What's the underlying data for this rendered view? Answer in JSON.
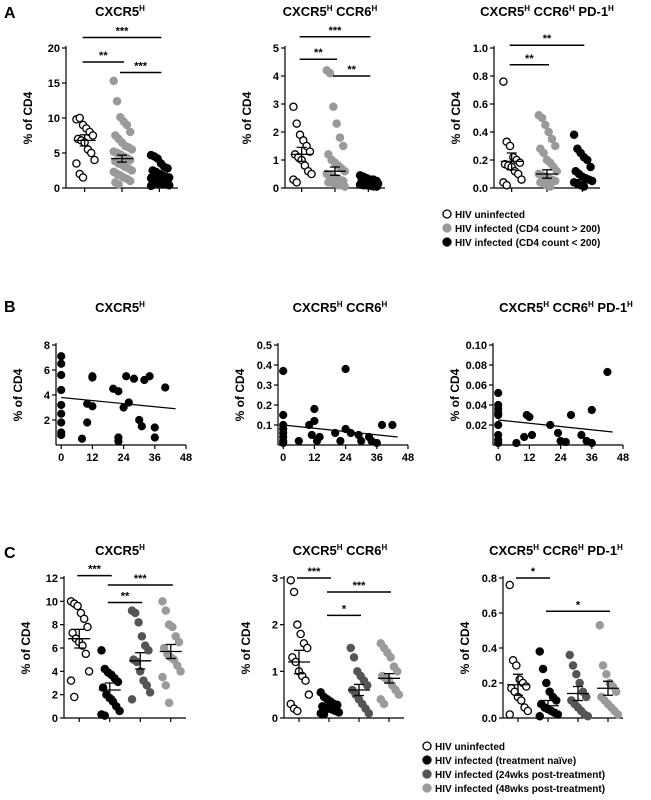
{
  "panel_labels": [
    "A",
    "B",
    "C"
  ],
  "legend_A": [
    {
      "label": "HIV uninfected",
      "color": "#ffffff"
    },
    {
      "label": "HIV infected (CD4 count > 200)",
      "color": "#9a9a9a"
    },
    {
      "label": "HIV infected (CD4 count < 200)",
      "color": "#000000"
    }
  ],
  "legend_C": [
    {
      "label": "HIV uninfected",
      "color": "#ffffff"
    },
    {
      "label": "HIV infected (treatment naïve)",
      "color": "#000000"
    },
    {
      "label": "HIV infected (24wks post-treatment)",
      "color": "#555555"
    },
    {
      "label": "HIV infected (48wks post-treatment)",
      "color": "#9a9a9a"
    }
  ],
  "chart_data": [
    {
      "id": "A1",
      "type": "scatter",
      "title_main": "CXCR5",
      "title_sup": "H",
      "title_rest": "",
      "ylabel": "% of CD4",
      "ylim": [
        0,
        20
      ],
      "yticks": [
        0,
        5,
        10,
        15,
        20
      ],
      "groups": [
        {
          "legend_index": 0,
          "mean": 6.8,
          "sem": 0.8,
          "values": [
            9.8,
            10.0,
            9.0,
            8.5,
            8.0,
            7.5,
            7.0,
            6.8,
            6.5,
            5.5,
            5.0,
            4.0,
            3.5,
            2.0,
            1.5
          ]
        },
        {
          "legend_index": 1,
          "mean": 4.2,
          "sem": 0.5,
          "values": [
            15.3,
            12.4,
            10.1,
            9.5,
            9.0,
            8.0,
            7.5,
            7.0,
            6.5,
            6.0,
            5.8,
            5.5,
            5.2,
            5.0,
            4.8,
            4.5,
            4.3,
            4.0,
            3.8,
            3.5,
            3.3,
            3.0,
            2.8,
            2.5,
            2.3,
            2.0,
            1.8,
            1.5,
            1.3,
            1.0,
            0.8,
            0.5
          ]
        },
        {
          "legend_index": 2,
          "mean": 1.9,
          "sem": 0.3,
          "values": [
            4.7,
            4.5,
            4.2,
            3.5,
            3.0,
            2.8,
            2.5,
            2.3,
            2.0,
            1.8,
            1.6,
            1.5,
            1.4,
            1.3,
            1.2,
            1.1,
            1.0,
            0.9,
            0.8,
            0.7,
            0.6,
            0.5,
            0.5,
            0.4,
            0.3
          ]
        }
      ],
      "brackets": [
        {
          "from": 0,
          "to": 1,
          "y": 18,
          "label": "**"
        },
        {
          "from": 0,
          "to": 2,
          "y": 21.5,
          "label": "***"
        },
        {
          "from": 1,
          "to": 2,
          "y": 16.5,
          "label": "***"
        }
      ]
    },
    {
      "id": "A2",
      "type": "scatter",
      "title_main": "CXCR5",
      "title_sup": "H",
      "title_rest": " CCR6",
      "title_sup2": "H",
      "title_rest2": "",
      "ylabel": "% of CD4",
      "ylim": [
        0,
        5
      ],
      "yticks": [
        0,
        1,
        2,
        3,
        4,
        5
      ],
      "groups": [
        {
          "legend_index": 0,
          "mean": 1.2,
          "sem": 0.25,
          "values": [
            2.9,
            2.3,
            1.9,
            1.7,
            1.5,
            1.3,
            1.2,
            1.1,
            1.0,
            0.8,
            0.6,
            0.5,
            0.3,
            0.2
          ]
        },
        {
          "legend_index": 1,
          "mean": 0.6,
          "sem": 0.15,
          "values": [
            4.2,
            4.1,
            2.9,
            2.3,
            1.8,
            1.5,
            1.2,
            1.0,
            0.9,
            0.8,
            0.7,
            0.6,
            0.5,
            0.45,
            0.4,
            0.35,
            0.3,
            0.25,
            0.2,
            0.2,
            0.15,
            0.1,
            0.1,
            0.05
          ]
        },
        {
          "legend_index": 2,
          "mean": 0.2,
          "sem": 0.03,
          "values": [
            0.45,
            0.4,
            0.35,
            0.3,
            0.3,
            0.25,
            0.25,
            0.2,
            0.2,
            0.2,
            0.15,
            0.15,
            0.12,
            0.1,
            0.1,
            0.08,
            0.06,
            0.05
          ]
        }
      ],
      "brackets": [
        {
          "from": 0,
          "to": 1,
          "y": 4.6,
          "label": "**"
        },
        {
          "from": 0,
          "to": 2,
          "y": 5.4,
          "label": "***"
        },
        {
          "from": 1,
          "to": 2,
          "y": 4.0,
          "label": "**"
        }
      ]
    },
    {
      "id": "A3",
      "type": "scatter",
      "title_main": "CXCR5",
      "title_sup": "H",
      "title_rest": " CCR6",
      "title_sup2": "H",
      "title_rest2": " PD-1",
      "title_sup3": "H",
      "ylabel": "% of CD4",
      "ylim": [
        0,
        1.0
      ],
      "yticks": [
        0.0,
        0.2,
        0.4,
        0.6,
        0.8,
        1.0
      ],
      "decimals": 1,
      "groups": [
        {
          "legend_index": 0,
          "mean": 0.19,
          "sem": 0.06,
          "values": [
            0.76,
            0.33,
            0.3,
            0.22,
            0.2,
            0.18,
            0.17,
            0.16,
            0.15,
            0.12,
            0.1,
            0.06,
            0.04,
            0.02
          ]
        },
        {
          "legend_index": 1,
          "mean": 0.1,
          "sem": 0.03,
          "values": [
            0.52,
            0.5,
            0.45,
            0.4,
            0.35,
            0.3,
            0.28,
            0.25,
            0.2,
            0.18,
            0.15,
            0.12,
            0.1,
            0.09,
            0.08,
            0.07,
            0.06,
            0.05,
            0.04,
            0.03,
            0.02,
            0.01
          ]
        },
        {
          "legend_index": 2,
          "mean": 0.06,
          "sem": 0.02,
          "values": [
            0.38,
            0.28,
            0.25,
            0.22,
            0.2,
            0.15,
            0.12,
            0.1,
            0.08,
            0.07,
            0.06,
            0.05,
            0.04,
            0.03,
            0.02,
            0.01
          ]
        }
      ],
      "brackets": [
        {
          "from": 0,
          "to": 1,
          "y": 0.88,
          "label": "**"
        },
        {
          "from": 0,
          "to": 2,
          "y": 1.02,
          "label": "**"
        }
      ]
    },
    {
      "id": "B1",
      "type": "scatter",
      "title_main": "CXCR5",
      "title_sup": "H",
      "title_rest": "",
      "ylabel": "% of CD4",
      "xlim": [
        -2,
        48
      ],
      "ylim": [
        0,
        8
      ],
      "xticks": [
        0,
        12,
        24,
        36,
        48
      ],
      "yticks": [
        2,
        4,
        6,
        8
      ],
      "points": [
        [
          0,
          7.1
        ],
        [
          0,
          6.5
        ],
        [
          0,
          5.6
        ],
        [
          0,
          4.4
        ],
        [
          0,
          3.2
        ],
        [
          0,
          2.5
        ],
        [
          0,
          1.8
        ],
        [
          0,
          1.0
        ],
        [
          0,
          0.8
        ],
        [
          8,
          0.5
        ],
        [
          10,
          3.3
        ],
        [
          10,
          1.8
        ],
        [
          12,
          5.5
        ],
        [
          12,
          5.4
        ],
        [
          12,
          3.1
        ],
        [
          20,
          4.5
        ],
        [
          22,
          4.3
        ],
        [
          22,
          0.6
        ],
        [
          22,
          0.3
        ],
        [
          24,
          3.0
        ],
        [
          25,
          5.5
        ],
        [
          26,
          3.4
        ],
        [
          28,
          5.3
        ],
        [
          30,
          2.0
        ],
        [
          31,
          1.5
        ],
        [
          32,
          5.2
        ],
        [
          34,
          5.5
        ],
        [
          36,
          1.4
        ],
        [
          36,
          0.6
        ],
        [
          40,
          4.6
        ]
      ],
      "trend": [
        [
          0,
          3.8
        ],
        [
          44,
          2.9
        ]
      ]
    },
    {
      "id": "B2",
      "type": "scatter",
      "title_main": "CXCR5",
      "title_sup": "H",
      "title_rest": " CCR6",
      "title_sup2": "H",
      "title_rest2": "",
      "ylabel": "% of CD4",
      "xlim": [
        -2,
        48
      ],
      "ylim": [
        0,
        0.5
      ],
      "xticks": [
        0,
        12,
        24,
        36,
        48
      ],
      "yticks": [
        0.1,
        0.2,
        0.3,
        0.4,
        0.5
      ],
      "decimals": 1,
      "points": [
        [
          0,
          0.37
        ],
        [
          0,
          0.15
        ],
        [
          0,
          0.1
        ],
        [
          0,
          0.08
        ],
        [
          0,
          0.06
        ],
        [
          0,
          0.04
        ],
        [
          0,
          0.02
        ],
        [
          0,
          0.01
        ],
        [
          6,
          0.02
        ],
        [
          10,
          0.1
        ],
        [
          11,
          0.05
        ],
        [
          12,
          0.18
        ],
        [
          12,
          0.12
        ],
        [
          14,
          0.04
        ],
        [
          13,
          0.02
        ],
        [
          20,
          0.06
        ],
        [
          22,
          0.02
        ],
        [
          24,
          0.38
        ],
        [
          24,
          0.08
        ],
        [
          26,
          0.06
        ],
        [
          29,
          0.05
        ],
        [
          30,
          0.02
        ],
        [
          33,
          0.04
        ],
        [
          34,
          0.02
        ],
        [
          36,
          0.01
        ],
        [
          38,
          0.1
        ],
        [
          42,
          0.1
        ]
      ],
      "trend": [
        [
          0,
          0.1
        ],
        [
          44,
          0.04
        ]
      ]
    },
    {
      "id": "B3",
      "type": "scatter",
      "title_main": "CXCR5",
      "title_sup": "H",
      "title_rest": " CCR6",
      "title_sup2": "H",
      "title_rest2": " PD-1",
      "title_sup3": "H",
      "ylabel": "% of CD4",
      "xlim": [
        -2,
        48
      ],
      "ylim": [
        0,
        0.1
      ],
      "xticks": [
        0,
        12,
        24,
        36,
        48
      ],
      "yticks": [
        0.02,
        0.04,
        0.06,
        0.08,
        0.1
      ],
      "decimals": 2,
      "points": [
        [
          0,
          0.052
        ],
        [
          0,
          0.04
        ],
        [
          0,
          0.036
        ],
        [
          0,
          0.032
        ],
        [
          0,
          0.03
        ],
        [
          0,
          0.02
        ],
        [
          0,
          0.01
        ],
        [
          0,
          0.005
        ],
        [
          0,
          0.002
        ],
        [
          7,
          0.002
        ],
        [
          10,
          0.008
        ],
        [
          11,
          0.03
        ],
        [
          12,
          0.028
        ],
        [
          13,
          0.01
        ],
        [
          20,
          0.02
        ],
        [
          23,
          0.012
        ],
        [
          24,
          0.004
        ],
        [
          26,
          0.003
        ],
        [
          28,
          0.03
        ],
        [
          32,
          0.01
        ],
        [
          34,
          0.004
        ],
        [
          36,
          0.035
        ],
        [
          36,
          0.002
        ],
        [
          42,
          0.073
        ]
      ],
      "trend": [
        [
          0,
          0.025
        ],
        [
          44,
          0.013
        ]
      ]
    },
    {
      "id": "C1",
      "type": "scatter",
      "title_main": "CXCR5",
      "title_sup": "H",
      "title_rest": "",
      "ylabel": "% of CD4",
      "ylim": [
        0,
        12
      ],
      "yticks": [
        0,
        2,
        4,
        6,
        8,
        10,
        12
      ],
      "groups": [
        {
          "legend_index": 0,
          "mean": 6.8,
          "sem": 0.8,
          "values": [
            10.0,
            9.8,
            9.6,
            9.0,
            8.5,
            7.8,
            7.3,
            6.8,
            6.5,
            6.2,
            5.5,
            4.0,
            3.2,
            1.8
          ]
        },
        {
          "legend_index": 1,
          "mean": 2.4,
          "sem": 0.6,
          "values": [
            5.8,
            4.2,
            3.9,
            3.7,
            3.4,
            3.1,
            2.6,
            2.0,
            1.7,
            1.4,
            1.0,
            0.6,
            0.3,
            0.2
          ]
        },
        {
          "legend_index": 2,
          "mean": 4.9,
          "sem": 0.7,
          "values": [
            9.2,
            9.0,
            8.2,
            7.0,
            6.2,
            5.8,
            5.0,
            4.8,
            4.0,
            3.2,
            2.8,
            2.2,
            1.6
          ]
        },
        {
          "legend_index": 3,
          "mean": 5.7,
          "sem": 0.6,
          "values": [
            10.0,
            9.2,
            8.0,
            7.8,
            7.0,
            6.5,
            6.0,
            5.5,
            5.2,
            5.0,
            4.5,
            4.0,
            3.5,
            2.8,
            1.3
          ]
        }
      ],
      "brackets": [
        {
          "from": 0,
          "to": 1,
          "y": 12.2,
          "label": "***"
        },
        {
          "from": 1,
          "to": 2,
          "y": 9.9,
          "label": "**"
        },
        {
          "from": 1,
          "to": 3,
          "y": 11.4,
          "label": "***"
        }
      ]
    },
    {
      "id": "C2",
      "type": "scatter",
      "title_main": "CXCR5",
      "title_sup": "H",
      "title_rest": " CCR6",
      "title_sup2": "H",
      "title_rest2": "",
      "ylabel": "% of CD4",
      "ylim": [
        0,
        3
      ],
      "yticks": [
        0,
        1,
        2,
        3
      ],
      "groups": [
        {
          "legend_index": 0,
          "mean": 1.2,
          "sem": 0.25,
          "values": [
            2.95,
            2.7,
            2.0,
            1.8,
            1.6,
            1.5,
            1.3,
            1.2,
            1.0,
            0.9,
            0.8,
            0.5,
            0.3,
            0.2,
            0.15
          ]
        },
        {
          "legend_index": 1,
          "mean": 0.25,
          "sem": 0.05,
          "values": [
            0.55,
            0.45,
            0.4,
            0.35,
            0.3,
            0.28,
            0.25,
            0.22,
            0.2,
            0.18,
            0.15,
            0.12,
            0.1,
            0.08
          ]
        },
        {
          "legend_index": 2,
          "mean": 0.6,
          "sem": 0.12,
          "values": [
            1.5,
            1.3,
            1.0,
            0.9,
            0.8,
            0.7,
            0.6,
            0.5,
            0.4,
            0.3,
            0.2,
            0.1
          ]
        },
        {
          "legend_index": 3,
          "mean": 0.85,
          "sem": 0.1,
          "values": [
            1.6,
            1.5,
            1.4,
            1.3,
            1.1,
            1.0,
            0.9,
            0.85,
            0.8,
            0.7,
            0.6,
            0.5,
            0.4,
            0.3
          ]
        }
      ],
      "brackets": [
        {
          "from": 0,
          "to": 1,
          "y": 3.0,
          "label": "***"
        },
        {
          "from": 1,
          "to": 2,
          "y": 2.2,
          "label": "*"
        },
        {
          "from": 1,
          "to": 3,
          "y": 2.7,
          "label": "***"
        }
      ]
    },
    {
      "id": "C3",
      "type": "scatter",
      "title_main": "CXCR5",
      "title_sup": "H",
      "title_rest": " CCR6",
      "title_sup2": "H",
      "title_rest2": " PD-1",
      "title_sup3": "H",
      "ylabel": "% of CD4",
      "ylim": [
        0,
        0.8
      ],
      "yticks": [
        0.0,
        0.2,
        0.4,
        0.6,
        0.8
      ],
      "decimals": 1,
      "groups": [
        {
          "legend_index": 0,
          "mean": 0.19,
          "sem": 0.06,
          "values": [
            0.76,
            0.33,
            0.3,
            0.22,
            0.2,
            0.18,
            0.17,
            0.15,
            0.12,
            0.1,
            0.06,
            0.04,
            0.02
          ]
        },
        {
          "legend_index": 1,
          "mean": 0.07,
          "sem": 0.03,
          "values": [
            0.38,
            0.28,
            0.2,
            0.15,
            0.12,
            0.1,
            0.08,
            0.06,
            0.05,
            0.04,
            0.03,
            0.02,
            0.01
          ]
        },
        {
          "legend_index": 2,
          "mean": 0.14,
          "sem": 0.04,
          "values": [
            0.36,
            0.3,
            0.25,
            0.2,
            0.15,
            0.12,
            0.1,
            0.08,
            0.06,
            0.04,
            0.02,
            0.01
          ]
        },
        {
          "legend_index": 3,
          "mean": 0.17,
          "sem": 0.04,
          "values": [
            0.53,
            0.3,
            0.25,
            0.2,
            0.18,
            0.15,
            0.12,
            0.1,
            0.08,
            0.06,
            0.04,
            0.02
          ]
        }
      ],
      "brackets": [
        {
          "from": 0,
          "to": 1,
          "y": 0.8,
          "label": "*"
        },
        {
          "from": 1,
          "to": 3,
          "y": 0.61,
          "label": "*"
        }
      ]
    }
  ]
}
